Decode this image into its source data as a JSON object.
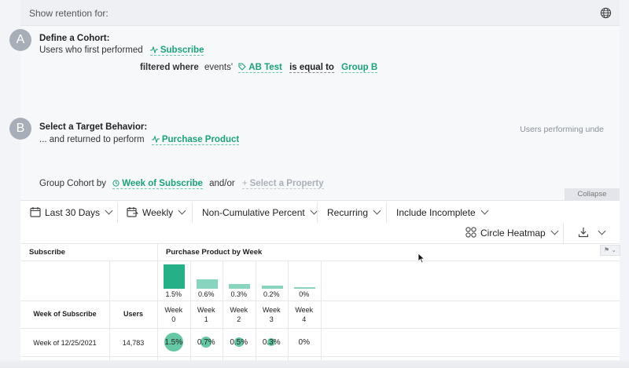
{
  "header": {
    "show_retention_label": "Show retention for:",
    "globe_icon": "globe-icon"
  },
  "cohort": {
    "badge": "A",
    "title": "Define a Cohort:",
    "line1_prefix": "Users who first performed",
    "event": "Subscribe",
    "filter_prefix": "filtered where",
    "filter_source": "events'",
    "property": "AB Test",
    "operator": "is equal to",
    "value": "Group B"
  },
  "target": {
    "badge": "B",
    "title": "Select a Target Behavior:",
    "line_prefix": "... and returned to perform",
    "event": "Purchase Product",
    "right_note": "Users performing unde"
  },
  "group": {
    "prefix": "Group Cohort by",
    "property": "Week of Subscribe",
    "andor": "and/or",
    "select_property": "Select a Property"
  },
  "collapse_label": "Collapse",
  "controls": {
    "date_range": "Last 30 Days",
    "interval": "Weekly",
    "mode": "Non-Cumulative Percent",
    "recurring": "Recurring",
    "incomplete": "Include Incomplete",
    "view": "Circle Heatmap"
  },
  "table": {
    "left_header": "Subscribe",
    "right_header": "Purchase Product by Week",
    "col_cohort": "Week of Subscribe",
    "col_users": "Users",
    "weeks": [
      {
        "label": "Week",
        "num": "0",
        "summary": "1.5%",
        "value": 1.5
      },
      {
        "label": "Week",
        "num": "1",
        "summary": "0.6%",
        "value": 0.6
      },
      {
        "label": "Week",
        "num": "2",
        "summary": "0.3%",
        "value": 0.3
      },
      {
        "label": "Week",
        "num": "3",
        "summary": "0.2%",
        "value": 0.2
      },
      {
        "label": "Week",
        "num": "4",
        "summary": "0%",
        "value": 0
      }
    ],
    "rows": [
      {
        "cohort": "Week of 12/25/2021",
        "users": "14,783",
        "values": [
          "1.5%",
          "0.7%",
          "0.5%",
          "0.3%",
          "0%"
        ],
        "nums": [
          1.5,
          0.7,
          0.5,
          0.3,
          0
        ]
      }
    ]
  },
  "colors": {
    "accent": "#1aa37a",
    "bar": "#26b088",
    "circle": "#66c8a4"
  }
}
